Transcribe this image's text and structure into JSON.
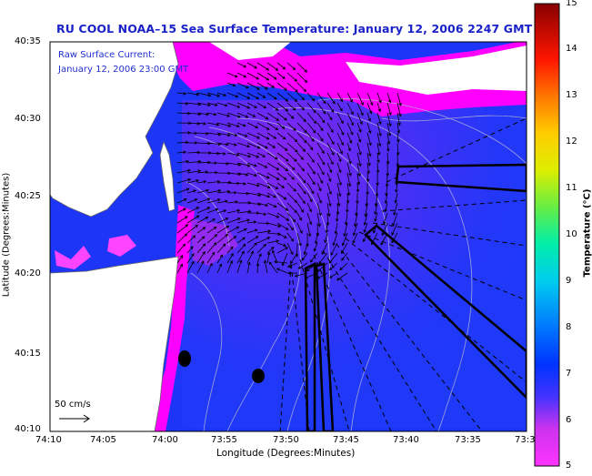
{
  "title": "RU COOL  NOAA–15  Sea Surface Temperature:  January 12, 2006 2247 GMT",
  "current_panel": {
    "label": "Raw Surface Current:",
    "time": "January 12, 2006 23:00 GMT",
    "scale_label": "50 cm/s"
  },
  "axes": {
    "xlabel": "Longitude (Degrees:Minutes)",
    "ylabel": "Latitude (Degrees:Minutes)",
    "xticks": [
      "74:10",
      "74:05",
      "74:00",
      "73:55",
      "73:50",
      "73:45",
      "73:40",
      "73:35",
      "73:3"
    ],
    "yticks": [
      "40:35",
      "40:30",
      "40:25",
      "40:20",
      "40:15",
      "40:10"
    ]
  },
  "colorbar": {
    "label": "Temperature (°C)",
    "ticks": [
      "15",
      "14",
      "13",
      "12",
      "11",
      "10",
      "9",
      "8",
      "7",
      "6",
      "5"
    ],
    "range": [
      5,
      15
    ]
  },
  "colors": {
    "title": "#1a22c8",
    "land": "#ffffff",
    "cold_water": "#ff00ff",
    "warm_water": "#1530ff"
  }
}
